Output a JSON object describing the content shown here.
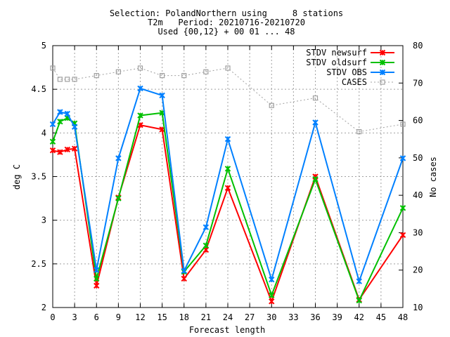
{
  "chart_data": {
    "type": "line",
    "title_lines": [
      "Selection: PolandNorthern using     8 stations",
      "T2m   Period: 20210716-20210720",
      "Used {00,12} + 00 01 ... 48"
    ],
    "xlabel": "Forecast length",
    "ylabel": "deg C",
    "y2label": "No cases",
    "xlim": [
      0,
      48
    ],
    "ylim": [
      2,
      5
    ],
    "y2lim": [
      10,
      80
    ],
    "xticks": [
      "0",
      "3",
      "6",
      "9",
      "12",
      "15",
      "18",
      "21",
      "24",
      "27",
      "30",
      "33",
      "36",
      "39",
      "42",
      "45",
      "48"
    ],
    "yticks": [
      "2",
      "2.5",
      "3",
      "3.5",
      "4",
      "4.5",
      "5"
    ],
    "y2ticks": [
      "10",
      "20",
      "30",
      "40",
      "50",
      "60",
      "70",
      "80"
    ],
    "grid": true,
    "legend_position": "top-right",
    "series": [
      {
        "name": "STDV newsurf",
        "color": "#ff0000",
        "marker": "x",
        "axis": "left",
        "x": [
          0,
          1,
          2,
          3,
          6,
          9,
          12,
          15,
          18,
          21,
          24,
          30,
          36,
          42,
          48
        ],
        "y": [
          3.8,
          3.78,
          3.81,
          3.82,
          2.25,
          3.26,
          4.09,
          4.04,
          2.33,
          2.66,
          3.37,
          2.07,
          3.5,
          2.09,
          2.83
        ]
      },
      {
        "name": "STDV oldsurf",
        "color": "#00c000",
        "marker": "x",
        "axis": "left",
        "x": [
          0,
          1,
          2,
          3,
          6,
          9,
          12,
          15,
          18,
          21,
          24,
          30,
          36,
          42,
          48
        ],
        "y": [
          3.9,
          4.13,
          4.17,
          4.11,
          2.33,
          3.25,
          4.2,
          4.23,
          2.41,
          2.71,
          3.59,
          2.14,
          3.47,
          2.08,
          3.14
        ]
      },
      {
        "name": "STDV OBS",
        "color": "#0080ff",
        "marker": "x",
        "axis": "left",
        "x": [
          0,
          1,
          2,
          3,
          6,
          9,
          12,
          15,
          18,
          21,
          24,
          30,
          36,
          42,
          48
        ],
        "y": [
          4.1,
          4.24,
          4.22,
          4.07,
          2.43,
          3.71,
          4.51,
          4.43,
          2.42,
          2.92,
          3.93,
          2.32,
          4.12,
          2.3,
          3.71
        ]
      },
      {
        "name": "CASES",
        "color": "#a0a0a0",
        "marker": "square",
        "axis": "right",
        "dashed": true,
        "x": [
          0,
          1,
          2,
          3,
          6,
          9,
          12,
          15,
          18,
          21,
          24,
          30,
          36,
          42,
          48
        ],
        "y": [
          74,
          71,
          71,
          71,
          72,
          73,
          74,
          72,
          72,
          73,
          74,
          64,
          66,
          57,
          59
        ]
      }
    ]
  }
}
